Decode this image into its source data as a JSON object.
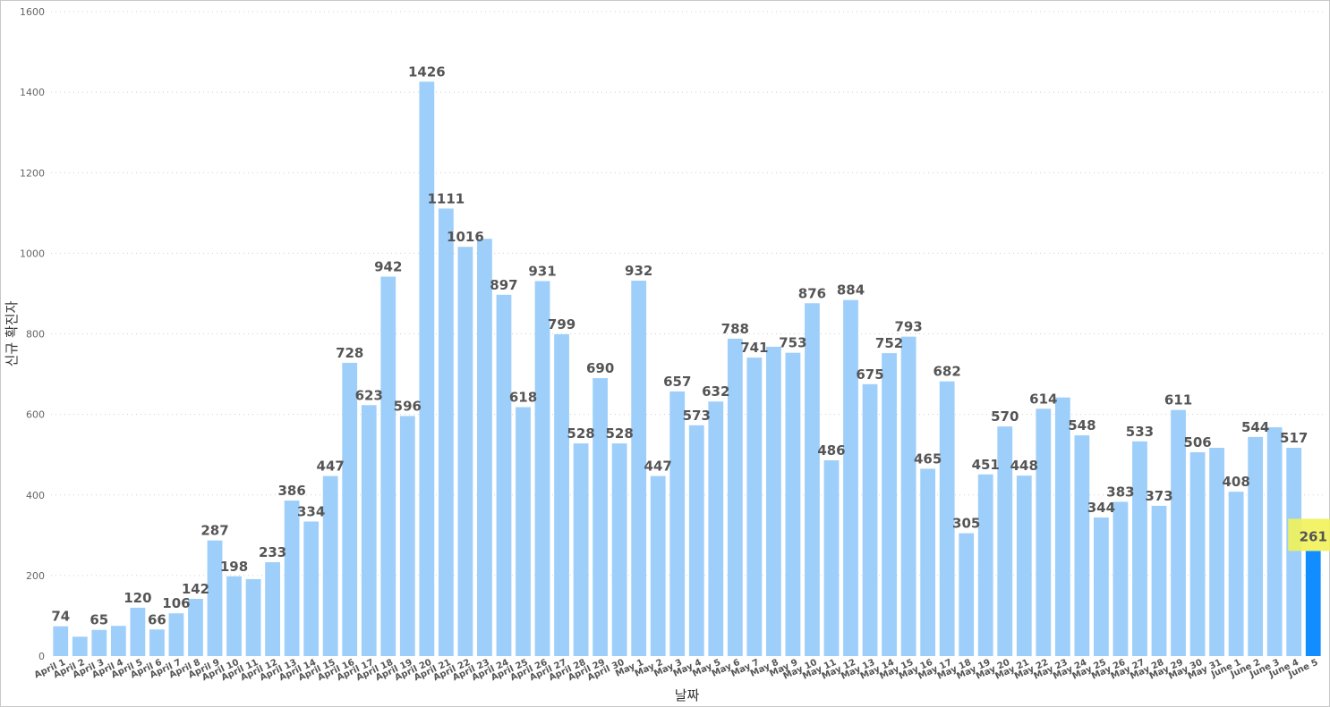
{
  "chart_data": {
    "type": "bar",
    "title": "",
    "xlabel": "날짜",
    "ylabel": "신규 확진자",
    "ylim": [
      0,
      1600
    ],
    "yticks": [
      0,
      200,
      400,
      600,
      800,
      1000,
      1200,
      1400,
      1600
    ],
    "grid": true,
    "colors": {
      "bar": "#9ecffa",
      "highlight_bar": "#118dff",
      "highlight_label_bg": "#f2f25a",
      "label": "#555555"
    },
    "categories": [
      "April 1",
      "April 2",
      "April 3",
      "April 4",
      "April 5",
      "April 6",
      "April 7",
      "April 8",
      "April 9",
      "April 10",
      "April 11",
      "April 12",
      "April 13",
      "April 14",
      "April 15",
      "April 16",
      "April 17",
      "April 18",
      "April 19",
      "April 20",
      "April 21",
      "April 22",
      "April 23",
      "April 24",
      "April 25",
      "April 26",
      "April 27",
      "April 28",
      "April 29",
      "April 30",
      "May 1",
      "May 2",
      "May 3",
      "May 4",
      "May 5",
      "May 6",
      "May 7",
      "May 8",
      "May 9",
      "May 10",
      "May 11",
      "May 12",
      "May 13",
      "May 14",
      "May 15",
      "May 16",
      "May 17",
      "May 18",
      "May 19",
      "May 20",
      "May 21",
      "May 22",
      "May 23",
      "May 24",
      "May 25",
      "May 26",
      "May 27",
      "May 28",
      "May 29",
      "May 30",
      "May 31",
      "June 1",
      "June 2",
      "June 3",
      "June 4",
      "June 5"
    ],
    "values": [
      74,
      48,
      65,
      75,
      120,
      66,
      106,
      142,
      287,
      198,
      191,
      233,
      386,
      334,
      447,
      728,
      623,
      942,
      596,
      1426,
      1111,
      1016,
      1036,
      897,
      618,
      931,
      799,
      528,
      690,
      528,
      932,
      447,
      657,
      573,
      632,
      788,
      741,
      768,
      753,
      876,
      486,
      884,
      675,
      752,
      793,
      465,
      682,
      305,
      451,
      570,
      448,
      614,
      642,
      548,
      344,
      383,
      533,
      373,
      611,
      506,
      517,
      408,
      544,
      568,
      517,
      261
    ],
    "data_labels": [
      "74",
      "",
      "65",
      "",
      "120",
      "66",
      "106",
      "142",
      "287",
      "198",
      "",
      "233",
      "386",
      "334",
      "447",
      "728",
      "623",
      "942",
      "596",
      "1426",
      "1111",
      "1016",
      "",
      "897",
      "618",
      "931",
      "799",
      "528",
      "690",
      "528",
      "932",
      "447",
      "657",
      "573",
      "632",
      "788",
      "741",
      "",
      "753",
      "876",
      "486",
      "884",
      "675",
      "752",
      "793",
      "465",
      "682",
      "305",
      "451",
      "570",
      "448",
      "614",
      "",
      "548",
      "344",
      "383",
      "533",
      "373",
      "611",
      "506",
      "",
      "408",
      "544",
      "",
      "517",
      "261"
    ],
    "highlight_index": 65
  }
}
